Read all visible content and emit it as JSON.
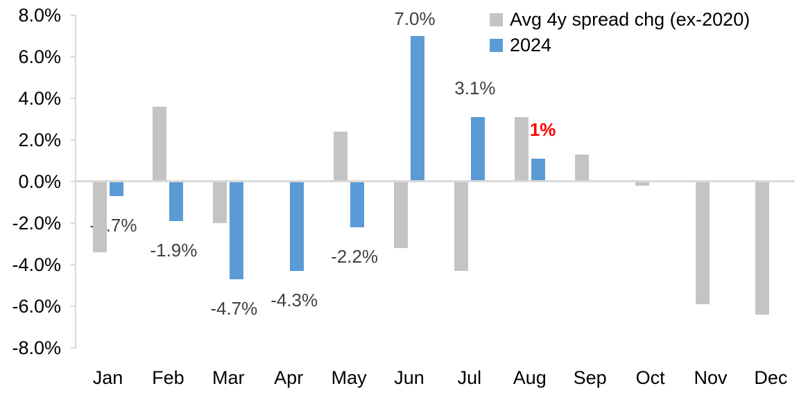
{
  "chart_data": {
    "type": "bar",
    "title": "",
    "categories": [
      "Jan",
      "Feb",
      "Mar",
      "Apr",
      "May",
      "Jun",
      "Jul",
      "Aug",
      "Sep",
      "Oct",
      "Nov",
      "Dec"
    ],
    "y_axis": {
      "unit": "%",
      "min": -8,
      "max": 8,
      "step": 2,
      "tick_labels": [
        "8.0%",
        "6.0%",
        "4.0%",
        "2.0%",
        "0.0%",
        "-2.0%",
        "-4.0%",
        "-6.0%",
        "-8.0%"
      ]
    },
    "grid": false,
    "legend_position": "top-right",
    "series": [
      {
        "name": "Avg 4y spread chg (ex-2020)",
        "color": "#C4C4C4",
        "values": [
          -3.4,
          3.6,
          -2.0,
          0.0,
          2.4,
          -3.2,
          -4.3,
          3.1,
          1.3,
          -0.2,
          -5.9,
          -6.4
        ]
      },
      {
        "name": "2024",
        "color": "#5B9BD5",
        "values": [
          -0.7,
          -1.9,
          -4.7,
          -4.3,
          -2.2,
          7.0,
          3.1,
          1.1,
          null,
          null,
          null,
          null
        ],
        "point_labels": [
          {
            "text": "-0.7%",
            "color": "#404040",
            "bold": false
          },
          {
            "text": "-1.9%",
            "color": "#404040",
            "bold": false
          },
          {
            "text": "-4.7%",
            "color": "#404040",
            "bold": false
          },
          {
            "text": "-4.3%",
            "color": "#404040",
            "bold": false
          },
          {
            "text": "-2.2%",
            "color": "#404040",
            "bold": false
          },
          {
            "text": "7.0%",
            "color": "#404040",
            "bold": false
          },
          {
            "text": "3.1%",
            "color": "#404040",
            "bold": false
          },
          {
            "text": "1.1%",
            "color": "#FF0000",
            "bold": true
          },
          null,
          null,
          null,
          null
        ]
      }
    ],
    "colors": {
      "axis": "#D9D9D9",
      "zero_line": "#D9D9D9",
      "axis_text": "#000000",
      "data_label": "#404040",
      "highlight_label": "#FF0000",
      "background": "#FFFFFF"
    }
  }
}
